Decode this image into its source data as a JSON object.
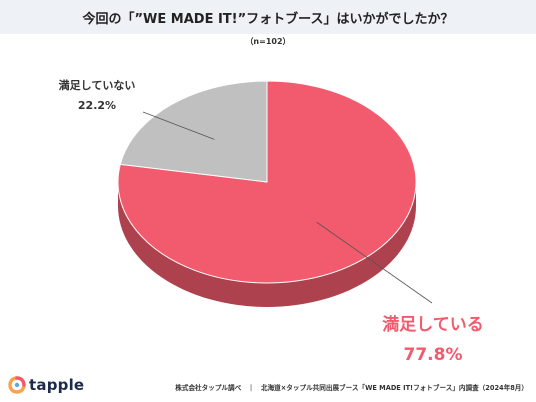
{
  "header": {
    "title": "今回の「”WE MADE IT!”フォトブース」はいかがでしたか？",
    "subtitle": "（n=102）"
  },
  "chart_data": {
    "type": "pie",
    "slices": [
      {
        "label": "満足している",
        "value": 77.8,
        "display": "77.8%",
        "color": "#f25a6d"
      },
      {
        "label": "満足していない",
        "value": 22.2,
        "display": "22.2%",
        "color": "#c0c0c0"
      }
    ]
  },
  "logo": {
    "text": "tapple"
  },
  "footer": {
    "text": "株式会社タップル調べ　｜　北海道×タップル共同出展ブース「WE MADE IT!フォトブース」内調査（2024年8月）"
  }
}
